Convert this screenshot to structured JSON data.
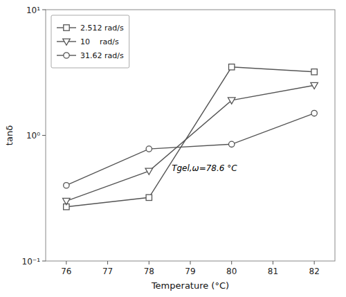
{
  "chart_data": {
    "type": "line",
    "x": [
      76,
      78,
      80,
      82
    ],
    "series": [
      {
        "name": "2.512 rad/s",
        "marker": "square",
        "color": "#555555",
        "values": [
          0.27,
          0.32,
          3.5,
          3.2
        ]
      },
      {
        "name": "10    rad/s",
        "marker": "triangle-down",
        "color": "#555555",
        "values": [
          0.3,
          0.52,
          1.9,
          2.5
        ]
      },
      {
        "name": "31.62 rad/s",
        "marker": "circle",
        "color": "#555555",
        "values": [
          0.4,
          0.78,
          0.85,
          1.5
        ]
      }
    ],
    "x_label": "Temperature (°C)",
    "y_label": "tanδ",
    "xlim": [
      75.5,
      82.5
    ],
    "xticks": [
      76,
      77,
      78,
      79,
      80,
      81,
      82
    ],
    "ylim": [
      0.1,
      10
    ],
    "yticks": [
      {
        "value": 0.1,
        "label": "10⁻¹"
      },
      {
        "value": 1,
        "label": "10⁰"
      },
      {
        "value": 10,
        "label": "10¹"
      }
    ],
    "log": "y",
    "legend": "upper left",
    "grid": false,
    "annotations": [
      {
        "text": "Tgel,ω=78.6 °C",
        "x": 78.55,
        "y": 0.52
      }
    ]
  }
}
